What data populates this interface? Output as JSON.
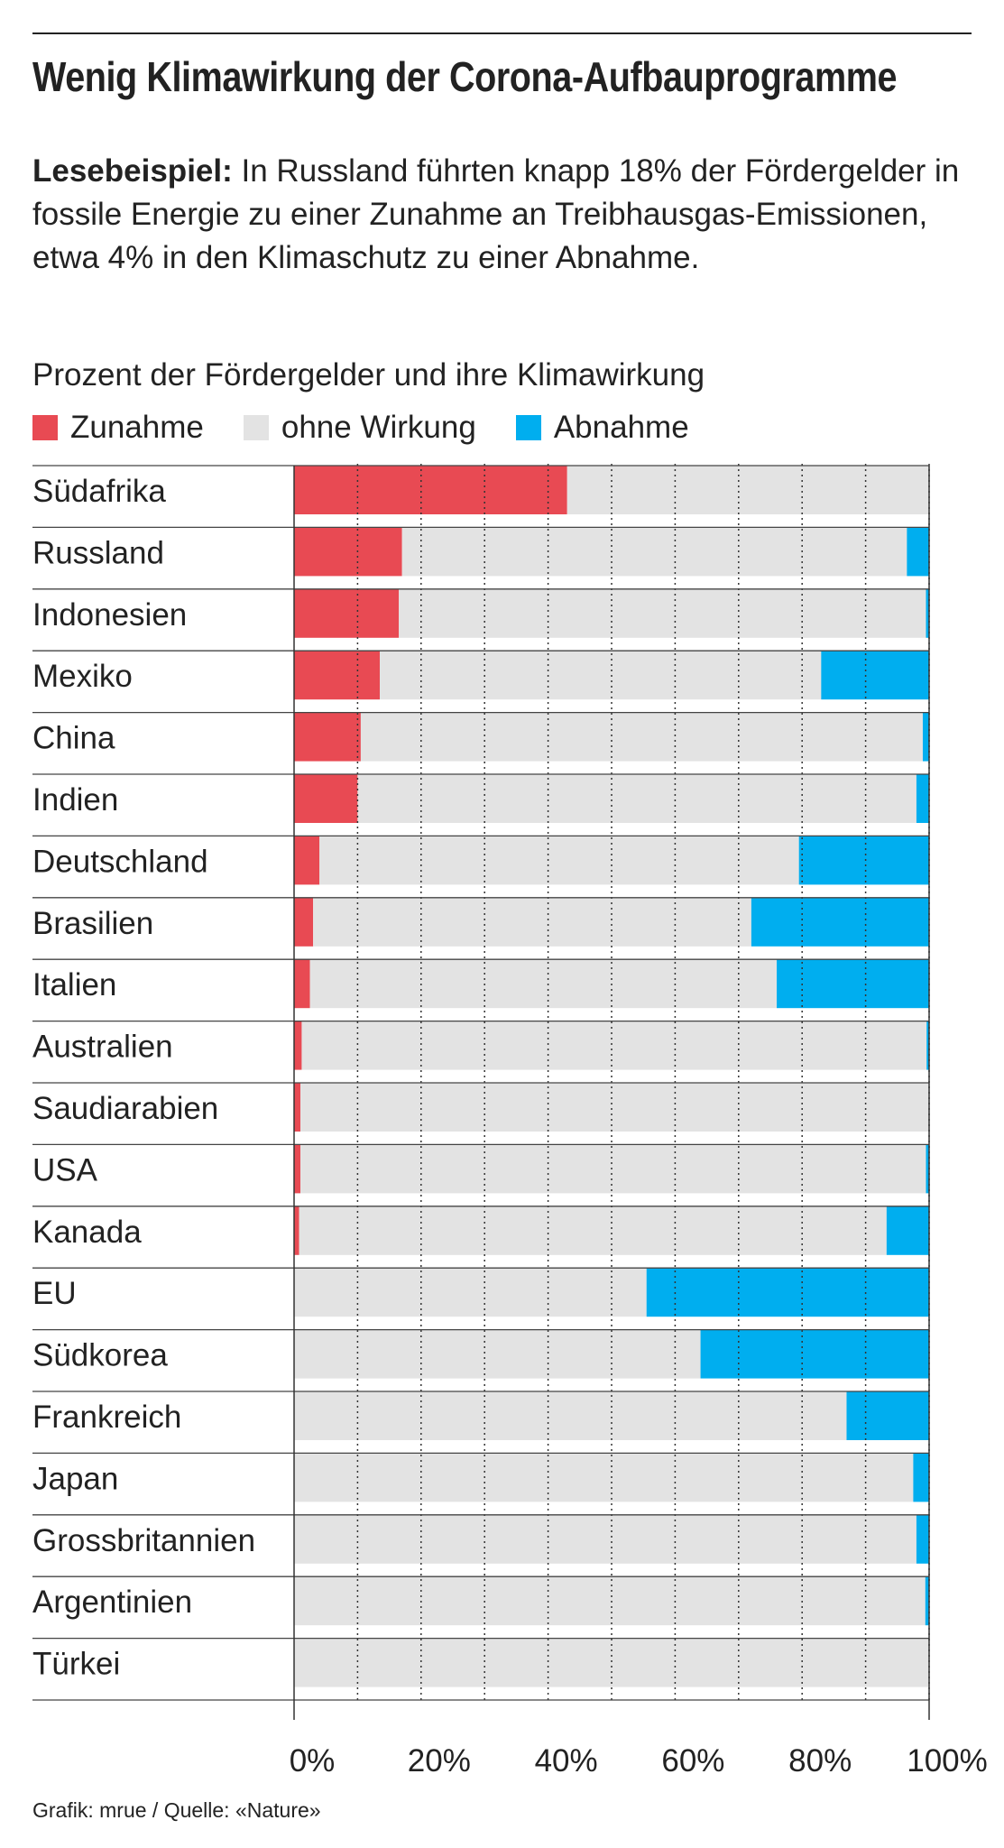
{
  "title": "Wenig Klimawirkung der Corona-Aufbauprogramme",
  "reading_example": {
    "lead": "Lesebeispiel:",
    "text": "In Russland führten knapp 18% der Fördergelder in fossile Energie zu einer Zunahme an Treibhausgas-Emissionen, etwa 4% in den Klimaschutz zu einer Abnahme."
  },
  "source": "Grafik: mrue / Quelle: «Nature»",
  "colors": {
    "zunahme": "#e84a53",
    "ohne": "#e3e3e3",
    "abnahme": "#00aeef",
    "grid": "#333333",
    "row_line": "#444444"
  },
  "chart_data": {
    "type": "bar",
    "orientation": "horizontal",
    "stacked": true,
    "title": "Prozent der Fördergelder und ihre Klimawirkung",
    "xlim": [
      0,
      100
    ],
    "x_ticks": [
      {
        "value": 0,
        "label": "0%"
      },
      {
        "value": 20,
        "label": "20%"
      },
      {
        "value": 40,
        "label": "40%"
      },
      {
        "value": 60,
        "label": "60%"
      },
      {
        "value": 80,
        "label": "80%"
      },
      {
        "value": 100,
        "label": "100%"
      }
    ],
    "minor_gridlines": [
      10,
      30,
      50,
      70,
      90
    ],
    "legend_position": "top-left",
    "categories": [
      "Südafrika",
      "Russland",
      "Indonesien",
      "Mexiko",
      "China",
      "Indien",
      "Deutschland",
      "Brasilien",
      "Italien",
      "Australien",
      "Saudiarabien",
      "USA",
      "Kanada",
      "EU",
      "Südkorea",
      "Frankreich",
      "Japan",
      "Grossbritannien",
      "Argentinien",
      "Türkei"
    ],
    "series": [
      {
        "name": "Zunahme",
        "color": "#e84a53",
        "values": [
          43,
          17,
          16.5,
          13.5,
          10.5,
          10,
          4,
          3,
          2.5,
          1.2,
          1,
          1,
          0.8,
          0,
          0,
          0,
          0,
          0,
          0,
          0
        ]
      },
      {
        "name": "ohne Wirkung",
        "color": "#e3e3e3",
        "values": [
          57,
          79.5,
          83,
          69.5,
          88.5,
          88,
          75.5,
          69,
          73.5,
          98.4,
          99,
          98.5,
          92.5,
          55.5,
          64,
          87,
          97.5,
          98,
          99.4,
          100
        ]
      },
      {
        "name": "Abnahme",
        "color": "#00aeef",
        "values": [
          0,
          3.5,
          0.5,
          17,
          1,
          2,
          20.5,
          28,
          24,
          0.4,
          0,
          0.5,
          6.7,
          44.5,
          36,
          13,
          2.5,
          2,
          0.6,
          0
        ]
      }
    ]
  }
}
